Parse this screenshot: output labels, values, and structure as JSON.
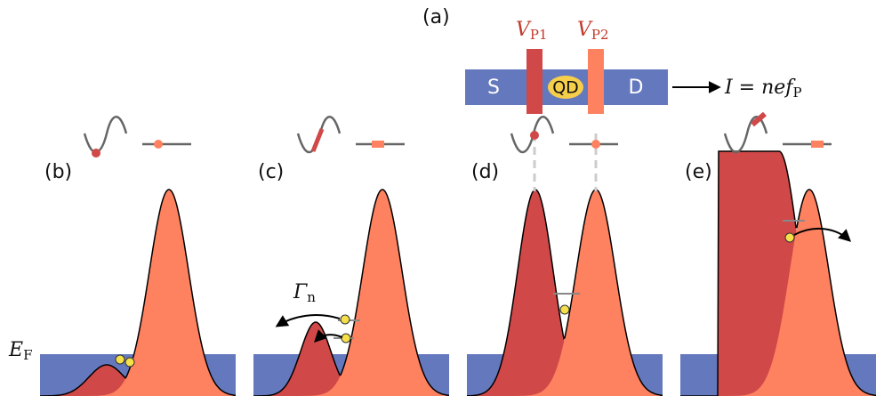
{
  "panels": {
    "a": "(a)",
    "b": "(b)",
    "c": "(c)",
    "d": "(d)",
    "e": "(e)"
  },
  "device": {
    "source": "S",
    "dot": "QD",
    "drain": "D"
  },
  "gate1": {
    "symbol": "V",
    "subscript": "P1"
  },
  "gate2": {
    "symbol": "V",
    "subscript": "P2"
  },
  "current": {
    "expression": "I = nef",
    "subscript": "P"
  },
  "rate": {
    "symbol": "Γ",
    "subscript": "n"
  },
  "fermi": {
    "symbol": "E",
    "subscript": "F"
  }
}
